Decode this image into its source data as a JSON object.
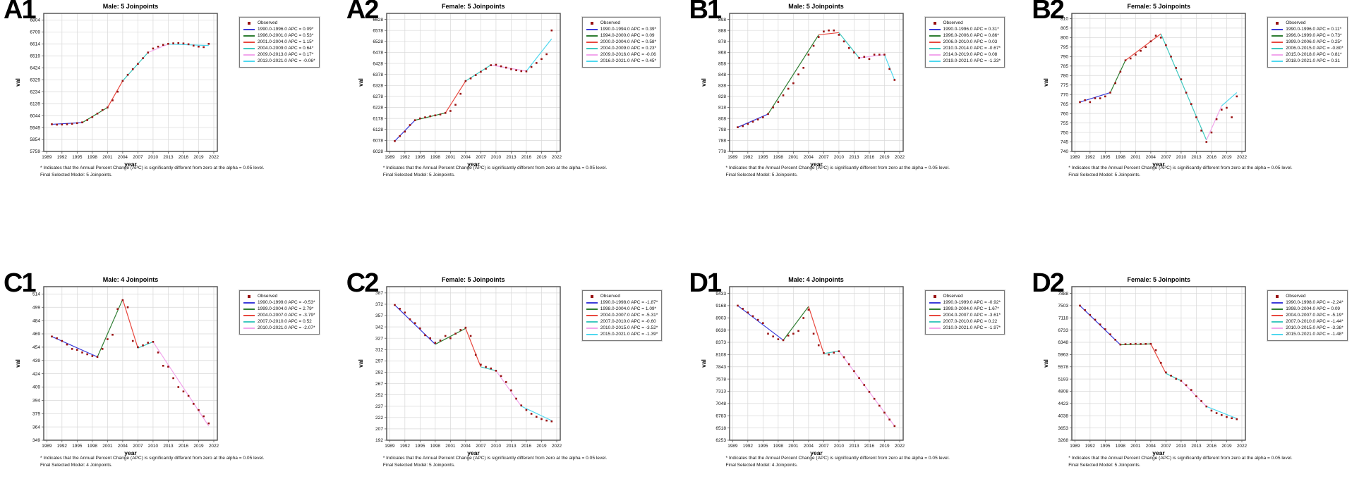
{
  "footnotes": {
    "significance": "* Indicates that the Annual Percent Change (APC) is significantly different from zero at the alpha = 0.05 level."
  },
  "axis": {
    "xlabel": "year",
    "ylabel": "val",
    "xticks": [
      1989,
      1992,
      1995,
      1998,
      2001,
      2004,
      2007,
      2010,
      2013,
      2016,
      2019,
      2022
    ],
    "observed_years": [
      1990,
      1991,
      1992,
      1993,
      1994,
      1995,
      1996,
      1997,
      1998,
      1999,
      2000,
      2001,
      2002,
      2003,
      2004,
      2005,
      2006,
      2007,
      2008,
      2009,
      2010,
      2011,
      2012,
      2013,
      2014,
      2015,
      2016,
      2017,
      2018,
      2019,
      2020,
      2021
    ]
  },
  "colors": {
    "observed": "#991111",
    "grid": "#d8d8d8",
    "border": "#4d4d4d",
    "segment_palette": [
      "#3a3ad9",
      "#2e7d32",
      "#e8483f",
      "#3fc8bf",
      "#f2a6ec",
      "#4fd8ef"
    ]
  },
  "legend_observed_label": "Observed",
  "chart_data": [
    {
      "id": "A1",
      "type": "joinpoint-line",
      "row": 0,
      "title": "Male: 5 Joinpoints",
      "final_model": "Final Selected Model: 5 Joinpoints.",
      "yticks": [
        6804,
        6709,
        6614,
        6519,
        6424,
        6329,
        6234,
        6139,
        6044,
        5949,
        5854,
        5759
      ],
      "observed_values": [
        5975,
        5972,
        5973,
        5975,
        5979,
        5984,
        5990,
        6008,
        6032,
        6060,
        6088,
        6108,
        6165,
        6234,
        6320,
        6368,
        6413,
        6455,
        6500,
        6545,
        6577,
        6592,
        6606,
        6614,
        6618,
        6620,
        6617,
        6611,
        6600,
        6592,
        6588,
        6614
      ],
      "segments": [
        {
          "label": "1990.0-1996.0 APC = 0.09*",
          "color": "#3a3ad9",
          "x1": 1990,
          "y1": 5975,
          "x2": 1996,
          "y2": 5988
        },
        {
          "label": "1996.0-2001.0 APC = 0.53*",
          "color": "#2e7d32",
          "x1": 1996,
          "y1": 5988,
          "x2": 2001,
          "y2": 6108
        },
        {
          "label": "2001.0-2004.0 APC = 1.15*",
          "color": "#e8483f",
          "x1": 2001,
          "y1": 6108,
          "x2": 2004,
          "y2": 6320
        },
        {
          "label": "2004.0-2009.0 APC = 0.64*",
          "color": "#3fc8bf",
          "x1": 2004,
          "y1": 6320,
          "x2": 2009,
          "y2": 6545
        },
        {
          "label": "2009.0-2013.0 APC = 0.17*",
          "color": "#f2a6ec",
          "x1": 2009,
          "y1": 6545,
          "x2": 2013,
          "y2": 6612
        },
        {
          "label": "2013.0-2021.0 APC = -0.06*",
          "color": "#4fd8ef",
          "x1": 2013,
          "y1": 6612,
          "x2": 2021,
          "y2": 6601
        }
      ]
    },
    {
      "id": "A2",
      "type": "joinpoint-line",
      "row": 0,
      "title": "Female: 5 Joinpoints",
      "final_model": "Final Selected Model: 5 Joinpoints.",
      "yticks": [
        6628,
        6578,
        6528,
        6478,
        6428,
        6378,
        6328,
        6278,
        6228,
        6178,
        6128,
        6078,
        6028
      ],
      "observed_values": [
        6075,
        6098,
        6118,
        6148,
        6170,
        6178,
        6183,
        6188,
        6192,
        6196,
        6203,
        6212,
        6240,
        6290,
        6348,
        6360,
        6375,
        6390,
        6404,
        6420,
        6422,
        6415,
        6409,
        6402,
        6397,
        6393,
        6392,
        6412,
        6430,
        6448,
        6470,
        6578
      ],
      "segments": [
        {
          "label": "1990.0-1994.0 APC = 0.39*",
          "color": "#3a3ad9",
          "x1": 1990,
          "y1": 6075,
          "x2": 1994,
          "y2": 6170
        },
        {
          "label": "1994.0-2000.0 APC = 0.09",
          "color": "#2e7d32",
          "x1": 1994,
          "y1": 6170,
          "x2": 2000,
          "y2": 6203
        },
        {
          "label": "2000.0-2004.0 APC = 0.58*",
          "color": "#e8483f",
          "x1": 2000,
          "y1": 6203,
          "x2": 2004,
          "y2": 6348
        },
        {
          "label": "2004.0-2009.0 APC = 0.23*",
          "color": "#3fc8bf",
          "x1": 2004,
          "y1": 6348,
          "x2": 2009,
          "y2": 6421
        },
        {
          "label": "2009.0-2016.0 APC = -0.06",
          "color": "#f2a6ec",
          "x1": 2009,
          "y1": 6421,
          "x2": 2016,
          "y2": 6393
        },
        {
          "label": "2016.0-2021.0 APC = 0.45*",
          "color": "#4fd8ef",
          "x1": 2016,
          "y1": 6393,
          "x2": 2021,
          "y2": 6540
        }
      ]
    },
    {
      "id": "B1",
      "type": "joinpoint-line",
      "row": 0,
      "title": "Male: 5 Joinpoints",
      "final_model": "Final Selected Model: 5 Joinpoints.",
      "yticks": [
        898,
        888,
        878,
        868,
        858,
        848,
        838,
        828,
        818,
        808,
        798,
        788,
        778
      ],
      "observed_values": [
        800,
        801,
        803,
        805,
        807,
        809,
        812,
        818,
        823,
        829,
        835,
        840,
        848,
        854,
        866,
        874,
        882,
        887,
        888,
        888,
        884,
        878,
        872,
        868,
        863,
        864,
        862,
        866,
        866,
        866,
        853,
        843
      ],
      "segments": [
        {
          "label": "1990.0-1996.0 APC = 0.31*",
          "color": "#3a3ad9",
          "x1": 1990,
          "y1": 800,
          "x2": 1996,
          "y2": 812
        },
        {
          "label": "1996.0-2006.0 APC = 0.86*",
          "color": "#2e7d32",
          "x1": 1996,
          "y1": 812,
          "x2": 2006,
          "y2": 884
        },
        {
          "label": "2006.0-2010.0 APC = 0.03",
          "color": "#e8483f",
          "x1": 2006,
          "y1": 884,
          "x2": 2010,
          "y2": 886
        },
        {
          "label": "2010.0-2014.0 APC = -0.67*",
          "color": "#3fc8bf",
          "x1": 2010,
          "y1": 886,
          "x2": 2014,
          "y2": 863
        },
        {
          "label": "2014.0-2019.0 APC = 0.08",
          "color": "#f2a6ec",
          "x1": 2014,
          "y1": 863,
          "x2": 2019,
          "y2": 866
        },
        {
          "label": "2019.0-2021.0 APC = -1.33*",
          "color": "#4fd8ef",
          "x1": 2019,
          "y1": 866,
          "x2": 2021,
          "y2": 843
        }
      ]
    },
    {
      "id": "B2",
      "type": "joinpoint-line",
      "row": 0,
      "title": "Female: 5 Joinpoints",
      "final_model": "Final Selected Model: 5 Joinpoints.",
      "yticks": [
        810,
        805,
        800,
        795,
        790,
        785,
        780,
        775,
        770,
        765,
        760,
        755,
        750,
        745,
        740
      ],
      "observed_values": [
        766,
        767,
        766,
        768,
        768,
        769,
        771,
        776,
        782,
        788,
        789,
        791,
        793,
        795,
        798,
        801,
        800,
        796,
        790,
        784,
        778,
        771,
        765,
        758,
        751,
        745,
        750,
        757,
        762,
        763,
        758,
        769
      ],
      "segments": [
        {
          "label": "1990.0-1996.0 APC = 0.11*",
          "color": "#3a3ad9",
          "x1": 1990,
          "y1": 766,
          "x2": 1996,
          "y2": 771
        },
        {
          "label": "1996.0-1999.0 APC = 0.73*",
          "color": "#2e7d32",
          "x1": 1996,
          "y1": 771,
          "x2": 1999,
          "y2": 788
        },
        {
          "label": "1999.0-2006.0 APC = 0.25*",
          "color": "#e8483f",
          "x1": 1999,
          "y1": 788,
          "x2": 2006,
          "y2": 802
        },
        {
          "label": "2006.0-2015.0 APC = -0.80*",
          "color": "#3fc8bf",
          "x1": 2006,
          "y1": 802,
          "x2": 2015,
          "y2": 746
        },
        {
          "label": "2015.0-2018.0 APC = 0.81*",
          "color": "#f2a6ec",
          "x1": 2015,
          "y1": 746,
          "x2": 2018,
          "y2": 764
        },
        {
          "label": "2018.0-2021.0 APC = 0.31",
          "color": "#4fd8ef",
          "x1": 2018,
          "y1": 764,
          "x2": 2021,
          "y2": 771
        }
      ]
    },
    {
      "id": "C1",
      "type": "joinpoint-line",
      "row": 1,
      "title": "Male: 4 Joinpoints",
      "final_model": "Final Selected Model: 4 Joinpoints.",
      "yticks": [
        514,
        499,
        484,
        469,
        454,
        439,
        424,
        409,
        394,
        379,
        364,
        349
      ],
      "observed_values": [
        466,
        464,
        461,
        457,
        452,
        451,
        448,
        446,
        444,
        443,
        452,
        463,
        468,
        497,
        507,
        499,
        461,
        454,
        456,
        459,
        460,
        448,
        433,
        432,
        419,
        409,
        404,
        399,
        390,
        383,
        376,
        368
      ],
      "segments": [
        {
          "label": "1990.0-1999.0 APC = -0.53*",
          "color": "#3a3ad9",
          "x1": 1990,
          "y1": 466,
          "x2": 1999,
          "y2": 443
        },
        {
          "label": "1999.0-2004.0 APC = 2.79*",
          "color": "#2e7d32",
          "x1": 1999,
          "y1": 443,
          "x2": 2004,
          "y2": 508
        },
        {
          "label": "2004.0-2007.0 APC = -3.79*",
          "color": "#e8483f",
          "x1": 2004,
          "y1": 508,
          "x2": 2007,
          "y2": 453
        },
        {
          "label": "2007.0-2010.0 APC = 0.52",
          "color": "#3fc8bf",
          "x1": 2007,
          "y1": 453,
          "x2": 2010,
          "y2": 460
        },
        {
          "label": "2010.0-2021.0 APC = -2.07*",
          "color": "#f2a6ec",
          "x1": 2010,
          "y1": 460,
          "x2": 2021,
          "y2": 365
        }
      ]
    },
    {
      "id": "C2",
      "type": "joinpoint-line",
      "row": 1,
      "title": "Female: 5 Joinpoints",
      "final_model": "Final Selected Model: 5 Joinpoints.",
      "yticks": [
        387,
        372,
        357,
        342,
        327,
        312,
        297,
        282,
        267,
        252,
        237,
        222,
        207,
        192
      ],
      "observed_values": [
        371,
        366,
        361,
        352,
        347,
        340,
        331,
        327,
        321,
        324,
        330,
        327,
        333,
        338,
        341,
        330,
        305,
        292,
        289,
        287,
        284,
        277,
        269,
        258,
        247,
        238,
        232,
        227,
        223,
        220,
        218,
        217
      ],
      "segments": [
        {
          "label": "1990.0-1998.0 APC = -1.87*",
          "color": "#3a3ad9",
          "x1": 1990,
          "y1": 371,
          "x2": 1998,
          "y2": 319
        },
        {
          "label": "1998.0-2004.0 APC = 1.09*",
          "color": "#2e7d32",
          "x1": 1998,
          "y1": 319,
          "x2": 2004,
          "y2": 340
        },
        {
          "label": "2004.0-2007.0 APC = -5.31*",
          "color": "#e8483f",
          "x1": 2004,
          "y1": 340,
          "x2": 2007,
          "y2": 289
        },
        {
          "label": "2007.0-2010.0 APC = -0.60",
          "color": "#3fc8bf",
          "x1": 2007,
          "y1": 289,
          "x2": 2010,
          "y2": 284
        },
        {
          "label": "2010.0-2015.0 APC = -3.52*",
          "color": "#f2a6ec",
          "x1": 2010,
          "y1": 284,
          "x2": 2015,
          "y2": 237
        },
        {
          "label": "2015.0-2021.0 APC = -1.39*",
          "color": "#4fd8ef",
          "x1": 2015,
          "y1": 237,
          "x2": 2021,
          "y2": 218
        }
      ]
    },
    {
      "id": "D1",
      "type": "joinpoint-line",
      "row": 1,
      "title": "Male: 4 Joinpoints",
      "final_model": "Final Selected Model: 4 Joinpoints.",
      "yticks": [
        9433,
        9168,
        8903,
        8638,
        8373,
        8108,
        7843,
        7578,
        7313,
        7048,
        6783,
        6518,
        6253
      ],
      "observed_values": [
        9168,
        9100,
        9020,
        8940,
        8860,
        8790,
        8560,
        8500,
        8440,
        8420,
        8520,
        8560,
        8620,
        8900,
        9080,
        8560,
        8310,
        8140,
        8110,
        8150,
        8180,
        8050,
        7900,
        7750,
        7600,
        7450,
        7300,
        7150,
        7000,
        6850,
        6700,
        6560
      ],
      "segments": [
        {
          "label": "1990.0-1999.0 APC = -0.92*",
          "color": "#3a3ad9",
          "x1": 1990,
          "y1": 9168,
          "x2": 1999,
          "y2": 8420
        },
        {
          "label": "1999.0-2004.0 APC = 1.67*",
          "color": "#2e7d32",
          "x1": 1999,
          "y1": 8420,
          "x2": 2004,
          "y2": 9150
        },
        {
          "label": "2004.0-2007.0 APC = -3.61*",
          "color": "#e8483f",
          "x1": 2004,
          "y1": 9150,
          "x2": 2007,
          "y2": 8130
        },
        {
          "label": "2007.0-2010.0 APC = 0.22",
          "color": "#3fc8bf",
          "x1": 2007,
          "y1": 8130,
          "x2": 2010,
          "y2": 8185
        },
        {
          "label": "2010.0-2021.0 APC = -1.97*",
          "color": "#f2a6ec",
          "x1": 2010,
          "y1": 8185,
          "x2": 2021,
          "y2": 6560
        }
      ]
    },
    {
      "id": "D2",
      "type": "joinpoint-line",
      "row": 1,
      "title": "Female: 5 Joinpoints",
      "final_model": "Final Selected Model: 5 Joinpoints.",
      "yticks": [
        7888,
        7503,
        7118,
        6733,
        6348,
        5963,
        5578,
        5193,
        4808,
        4423,
        4038,
        3653,
        3268
      ],
      "observed_values": [
        7503,
        7360,
        7210,
        7060,
        6910,
        6760,
        6600,
        6430,
        6280,
        6290,
        6295,
        6300,
        6295,
        6298,
        6300,
        6100,
        5700,
        5400,
        5300,
        5200,
        5140,
        5000,
        4850,
        4650,
        4500,
        4330,
        4200,
        4120,
        4060,
        4000,
        3960,
        3930
      ],
      "segments": [
        {
          "label": "1990.0-1998.0 APC = -2.24*",
          "color": "#3a3ad9",
          "x1": 1990,
          "y1": 7503,
          "x2": 1998,
          "y2": 6270
        },
        {
          "label": "1998.0-2004.0 APC = 0.09",
          "color": "#2e7d32",
          "x1": 1998,
          "y1": 6270,
          "x2": 2004,
          "y2": 6300
        },
        {
          "label": "2004.0-2007.0 APC = -5.19*",
          "color": "#e8483f",
          "x1": 2004,
          "y1": 6300,
          "x2": 2007,
          "y2": 5370
        },
        {
          "label": "2007.0-2010.0 APC = -1.44*",
          "color": "#3fc8bf",
          "x1": 2007,
          "y1": 5370,
          "x2": 2010,
          "y2": 5140
        },
        {
          "label": "2010.0-2015.0 APC = -3.38*",
          "color": "#f2a6ec",
          "x1": 2010,
          "y1": 5140,
          "x2": 2015,
          "y2": 4330
        },
        {
          "label": "2015.0-2021.0 APC = -1.48*",
          "color": "#4fd8ef",
          "x1": 2015,
          "y1": 4330,
          "x2": 2021,
          "y2": 3950
        }
      ]
    }
  ]
}
